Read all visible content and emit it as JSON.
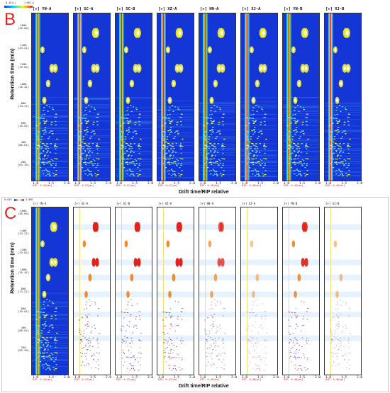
{
  "panel_b": {
    "letter": "B",
    "ylabel": "Retention time (min)",
    "xlabel": "Drift time/RIP relative",
    "scale_min": "-0.1E(+)",
    "scale_max": "1.6E(+)",
    "samples": [
      "[+] YN-A",
      "[+] SC-A",
      "[+] SC-B",
      "[+] XZ-A",
      "[+] HN-A",
      "[+] XJ-A",
      "[+] YN-B",
      "[+] XJ-B"
    ],
    "yticks": [
      [
        "1600",
        "[26.60]"
      ],
      [
        "1400",
        "[23.21]"
      ],
      [
        "1200",
        "[19.82]"
      ],
      [
        "1000",
        "[16.41]"
      ],
      [
        "800",
        "[13.21]"
      ],
      [
        "600",
        "[10.01]"
      ],
      [
        "400",
        "[06.61]"
      ],
      [
        "200",
        "[03.28]"
      ]
    ],
    "rip_labels": [
      "RIP: 6.45[ms]",
      "RIP: 6.47[ms]",
      "RIP: 6.47[ms]",
      "RIP: 6.47[ms]",
      "RIP: 6.46[ms]",
      "RIP: 6.46[ms]",
      "RIP: 6.46[ms]",
      "RIP: 6.46[ms]"
    ],
    "xticks": [
      "1.0",
      "1.5",
      "2.0"
    ]
  },
  "panel_c": {
    "letter": "C",
    "ylabel": "Retention time (min)",
    "xlabel": "Drift time/RIP relative",
    "scale_min": "0.015",
    "scale_max": "2.05E",
    "samples": [
      "[+] YN-A",
      "[+] SC-A",
      "[+] SC-B",
      "[+] XZ-A",
      "[+] HN-A",
      "[+] XJ-A",
      "[+] YN-B",
      "[+] XJ-B"
    ],
    "yticks": [
      [
        "1600",
        "[26.60]"
      ],
      [
        "1400",
        "[23.21]"
      ],
      [
        "1200",
        "[19.82]"
      ],
      [
        "1000",
        "[16.41]"
      ],
      [
        "800",
        "[13.21]"
      ],
      [
        "600",
        "[10.01]"
      ],
      [
        "400",
        "[06.61]"
      ],
      [
        "200",
        "[03.28]"
      ]
    ],
    "rip_labels": [
      "RIP: 6.45[ms]",
      "RIP: 6.47[ms]",
      "RIP: 6.47[ms]",
      "RIP: 6.47[ms]",
      "RIP: 6.46[ms]",
      "RIP: 6.46[ms]",
      "RIP: 6.46[ms]",
      "RIP: 6.46[ms]"
    ],
    "xticks": [
      "1.0",
      "1.5",
      "2.0"
    ]
  },
  "colors": {
    "background_blue": "#1436d6",
    "rip_red": "#d0141e",
    "letter_red": "#e0241b"
  }
}
